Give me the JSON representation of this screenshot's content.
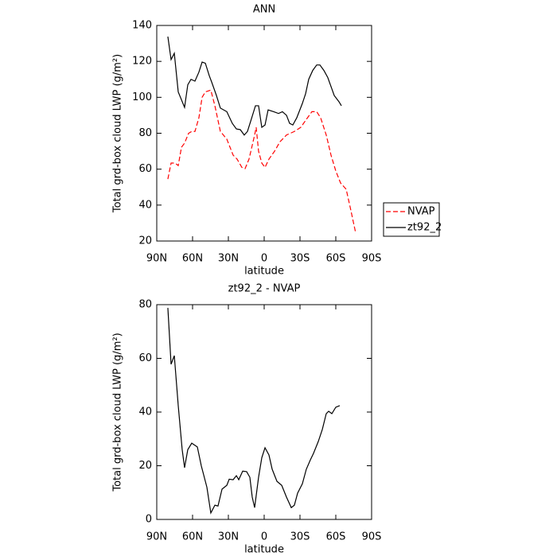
{
  "chart_data": [
    {
      "type": "line",
      "title": "ANN",
      "x_label": "latitude",
      "y_label": "Total grd-box cloud LWP (g/m²)",
      "xlim": [
        90,
        -90
      ],
      "ylim": [
        20,
        140
      ],
      "xticks": [
        {
          "value": 90,
          "label": "90N"
        },
        {
          "value": 60,
          "label": "60N"
        },
        {
          "value": 30,
          "label": "30N"
        },
        0,
        {
          "value": -30,
          "label": "30S"
        },
        {
          "value": -60,
          "label": "60S"
        },
        {
          "value": -90,
          "label": "90S"
        }
      ],
      "yticks": [
        20,
        40,
        60,
        80,
        100,
        120,
        140
      ],
      "legend": "right",
      "series": [
        {
          "name": "NVAP",
          "color": "#ff0000",
          "style": "dashed",
          "x": [
            80.7,
            78,
            74.7,
            72,
            69.3,
            66.7,
            63.3,
            60.7,
            58,
            54.7,
            52,
            49.3,
            44.7,
            41.3,
            36.7,
            31.3,
            26,
            22.7,
            18.7,
            16,
            12.7,
            8,
            6.7,
            4.7,
            2,
            -0.7,
            -4,
            -8.7,
            -13.3,
            -18.7,
            -25.3,
            -30.7,
            -35.3,
            -40,
            -44,
            -47.3,
            -52,
            -56,
            -60,
            -64,
            -68.7,
            -72,
            -76.7
          ],
          "values": [
            54.5,
            63.4,
            63.4,
            62,
            72.2,
            74.5,
            80,
            81,
            81,
            88.6,
            100,
            103,
            104,
            95.3,
            81,
            76.7,
            67.8,
            65.6,
            61,
            60.3,
            65.6,
            79,
            83.3,
            70,
            63.4,
            61,
            65.6,
            70,
            75.3,
            79,
            81,
            83.3,
            87.7,
            92,
            92,
            88.6,
            79,
            67.8,
            59,
            52.3,
            48.8,
            39,
            24.4
          ]
        },
        {
          "name": "zt92_2",
          "color": "#000000",
          "style": "solid",
          "x": [
            80.7,
            78,
            75.3,
            72,
            66.7,
            64,
            61.3,
            58,
            54.7,
            52,
            49.3,
            46,
            44,
            40,
            36.7,
            31.3,
            26.7,
            23.3,
            20,
            16.7,
            14,
            10.7,
            7.3,
            4.7,
            2,
            -0.7,
            -3.3,
            -8,
            -12,
            -15.3,
            -18.7,
            -21.3,
            -24,
            -27.3,
            -32,
            -34.7,
            -37.3,
            -40.7,
            -44,
            -46.7,
            -50,
            -53.3,
            -56,
            -58.7,
            -62.7,
            -64.7
          ],
          "values": [
            133.8,
            121,
            124.5,
            103,
            94.4,
            107,
            110,
            109,
            114,
            119.6,
            119,
            112,
            108.5,
            101,
            94,
            92,
            85.5,
            82.4,
            82,
            79,
            81,
            88,
            95.3,
            95.3,
            83.3,
            84.6,
            93,
            92,
            91,
            92,
            90,
            85.5,
            84.6,
            88.6,
            96.6,
            102,
            110,
            115,
            118,
            118,
            115,
            111,
            106,
            101,
            97.5,
            95.3
          ]
        }
      ]
    },
    {
      "type": "line",
      "title": "zt92_2 - NVAP",
      "x_label": "latitude",
      "y_label": "Total grd-box cloud LWP (g/m²)",
      "xlim": [
        90,
        -90
      ],
      "ylim": [
        0,
        80
      ],
      "xticks": [
        {
          "value": 90,
          "label": "90N"
        },
        {
          "value": 60,
          "label": "60N"
        },
        {
          "value": 30,
          "label": "30N"
        },
        0,
        {
          "value": -30,
          "label": "30S"
        },
        {
          "value": -60,
          "label": "60S"
        },
        {
          "value": -90,
          "label": "90S"
        }
      ],
      "yticks": [
        0,
        20,
        40,
        60,
        80
      ],
      "series": [
        {
          "color": "#000000",
          "style": "solid",
          "x": [
            80.7,
            78,
            75.3,
            72,
            68.7,
            66.7,
            64,
            60.7,
            56,
            52.7,
            48,
            44.7,
            41.3,
            38.7,
            35.3,
            31.3,
            29.3,
            26,
            23.3,
            21.3,
            18,
            14.7,
            12,
            10,
            8,
            4.7,
            2,
            -0.7,
            -4,
            -6.7,
            -10.7,
            -14.7,
            -18.7,
            -22.7,
            -25.3,
            -28,
            -32,
            -35.3,
            -38.7,
            -41.3,
            -45.3,
            -48.7,
            -52,
            -54,
            -56.7,
            -60,
            -63.3
          ],
          "values": [
            78.8,
            57.8,
            61,
            42.4,
            26,
            19.3,
            26,
            28.4,
            27,
            20,
            12,
            2.4,
            5.3,
            5,
            11.3,
            12.7,
            15,
            14.8,
            16.3,
            14.8,
            18,
            17.8,
            15.7,
            8.3,
            4.4,
            15.7,
            23,
            26.7,
            24,
            18.7,
            14.2,
            12.7,
            8.3,
            4.4,
            5.3,
            9.8,
            13.3,
            18.7,
            22.2,
            24.6,
            29,
            33.5,
            39.4,
            40.3,
            39.4,
            41.8,
            42.4
          ]
        }
      ]
    }
  ]
}
